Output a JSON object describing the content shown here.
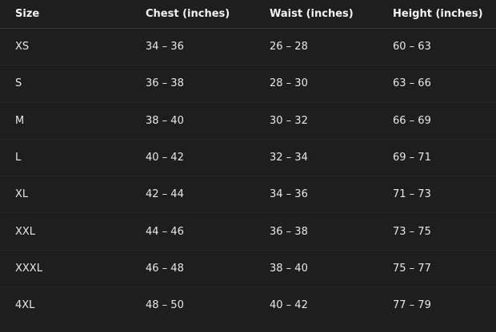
{
  "table": {
    "headers": [
      "Size",
      "Chest (inches)",
      "Waist (inches)",
      "Height (inches)"
    ],
    "rows": [
      [
        "XS",
        "34 – 36",
        "26 – 28",
        "60 – 63"
      ],
      [
        "S",
        "36 – 38",
        "28 – 30",
        "63 – 66"
      ],
      [
        "M",
        "38 – 40",
        "30 – 32",
        "66 – 69"
      ],
      [
        "L",
        "40 – 42",
        "32 – 34",
        "69 – 71"
      ],
      [
        "XL",
        "42 – 44",
        "34 – 36",
        "71 – 73"
      ],
      [
        "XXL",
        "44 – 46",
        "36 – 38",
        "73 – 75"
      ],
      [
        "XXXL",
        "46 – 48",
        "38 – 40",
        "75 – 77"
      ],
      [
        "4XL",
        "48 – 50",
        "40 – 42",
        "77 – 79"
      ]
    ]
  }
}
